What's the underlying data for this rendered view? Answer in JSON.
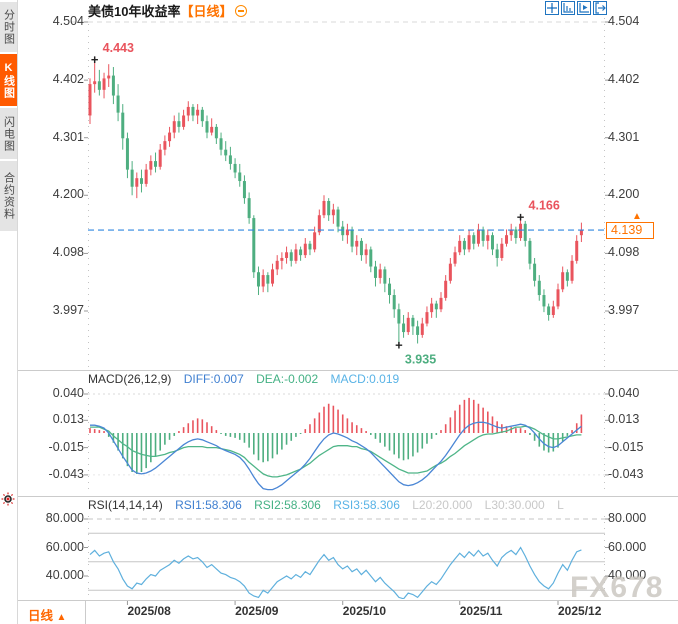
{
  "app": {
    "watermark": "FX678"
  },
  "colors": {
    "up": "#e9545d",
    "down": "#4eae80",
    "accent_orange": "#ff6600",
    "current_price_line": "#2e86e0",
    "diff_line": "#4a86d5",
    "dea_line": "#4fb588",
    "rsi_line": "#5fb0dd",
    "toolbar_blue": "#1f74c0",
    "axis_text": "#3d3d3d",
    "annotation_high": "#e9545d",
    "annotation_low": "#4eae80"
  },
  "sidebar": {
    "tabs": [
      {
        "label": "分时图",
        "active": false
      },
      {
        "label": "K线图",
        "active": true
      },
      {
        "label": "闪电图",
        "active": false
      },
      {
        "label": "合约资料",
        "active": false
      }
    ],
    "indicator_icon": "sun-icon"
  },
  "header": {
    "title": "美债10年收益率",
    "period_tag": "【日线】",
    "collapse_icon": "minus-circle-icon",
    "toolbar_icons": [
      "crosshair-icon",
      "axis-scale-icon",
      "axis-play-icon",
      "exit-chart-icon"
    ]
  },
  "main_chart": {
    "current_price": "4.139"
  },
  "macd": {
    "title": "MACD(26,12,9)",
    "diff_label": "DIFF:0.007",
    "dea_label": "DEA:-0.002",
    "macd_label": "MACD:0.019"
  },
  "rsi": {
    "title": "RSI(14,14,14)",
    "rsi1_label": "RSI1:58.306",
    "rsi2_label": "RSI2:58.306",
    "rsi3_label": "RSI3:58.306",
    "l20_label": "L20:20.000",
    "l30_label": "L30:30.000",
    "l_label": "L"
  },
  "footer": {
    "period_label": "日线",
    "arrow": "▲"
  },
  "chart_data": [
    {
      "type": "candlestick",
      "title": "美债10年收益率 日线",
      "y_tick_labels": [
        "4.504",
        "4.402",
        "4.301",
        "4.200",
        "4.098",
        "3.997"
      ],
      "y_tick_values": [
        4.504,
        4.402,
        4.301,
        4.2,
        4.098,
        3.997
      ],
      "ylim": [
        3.9,
        4.52
      ],
      "current_price": 4.139,
      "x_axis": {
        "labels": [
          "2025/08",
          "2025/09",
          "2025/10",
          "2025/11",
          "2025/12"
        ],
        "tick_indices": [
          8,
          31,
          54,
          79,
          100
        ]
      },
      "annotations": [
        {
          "label": "4.443",
          "index": 1,
          "price": 4.443,
          "placement": "above",
          "direction": "high"
        },
        {
          "label": "4.166",
          "index": 92,
          "price": 4.166,
          "placement": "above",
          "direction": "high"
        },
        {
          "label": "3.935",
          "index": 66,
          "price": 3.935,
          "placement": "below",
          "direction": "low"
        }
      ],
      "ohlc": [
        [
          4.34,
          4.405,
          4.325,
          4.395
        ],
        [
          4.395,
          4.443,
          4.38,
          4.4
        ],
        [
          4.4,
          4.42,
          4.375,
          4.385
        ],
        [
          4.385,
          4.415,
          4.37,
          4.405
        ],
        [
          4.405,
          4.43,
          4.39,
          4.41
        ],
        [
          4.41,
          4.425,
          4.36,
          4.375
        ],
        [
          4.375,
          4.395,
          4.33,
          4.345
        ],
        [
          4.345,
          4.36,
          4.28,
          4.3
        ],
        [
          4.3,
          4.31,
          4.23,
          4.245
        ],
        [
          4.245,
          4.26,
          4.2,
          4.215
        ],
        [
          4.215,
          4.24,
          4.195,
          4.23
        ],
        [
          4.23,
          4.245,
          4.205,
          4.22
        ],
        [
          4.22,
          4.255,
          4.215,
          4.245
        ],
        [
          4.245,
          4.27,
          4.235,
          4.26
        ],
        [
          4.26,
          4.275,
          4.24,
          4.25
        ],
        [
          4.25,
          4.29,
          4.245,
          4.28
        ],
        [
          4.28,
          4.305,
          4.27,
          4.295
        ],
        [
          4.295,
          4.32,
          4.285,
          4.31
        ],
        [
          4.31,
          4.34,
          4.3,
          4.33
        ],
        [
          4.33,
          4.345,
          4.31,
          4.32
        ],
        [
          4.32,
          4.35,
          4.315,
          4.34
        ],
        [
          4.34,
          4.365,
          4.33,
          4.355
        ],
        [
          4.355,
          4.36,
          4.33,
          4.34
        ],
        [
          4.34,
          4.36,
          4.325,
          4.35
        ],
        [
          4.35,
          4.355,
          4.32,
          4.33
        ],
        [
          4.33,
          4.34,
          4.3,
          4.31
        ],
        [
          4.31,
          4.335,
          4.305,
          4.32
        ],
        [
          4.32,
          4.325,
          4.29,
          4.3
        ],
        [
          4.3,
          4.31,
          4.27,
          4.28
        ],
        [
          4.28,
          4.295,
          4.26,
          4.27
        ],
        [
          4.27,
          4.285,
          4.245,
          4.255
        ],
        [
          4.255,
          4.265,
          4.23,
          4.24
        ],
        [
          4.24,
          4.255,
          4.215,
          4.225
        ],
        [
          4.225,
          4.235,
          4.185,
          4.195
        ],
        [
          4.195,
          4.205,
          4.15,
          4.16
        ],
        [
          4.16,
          4.165,
          4.055,
          4.065
        ],
        [
          4.065,
          4.075,
          4.025,
          4.04
        ],
        [
          4.04,
          4.07,
          4.03,
          4.06
        ],
        [
          4.06,
          4.065,
          4.03,
          4.045
        ],
        [
          4.045,
          4.08,
          4.04,
          4.07
        ],
        [
          4.07,
          4.095,
          4.06,
          4.085
        ],
        [
          4.085,
          4.1,
          4.07,
          4.09
        ],
        [
          4.09,
          4.11,
          4.08,
          4.1
        ],
        [
          4.1,
          4.105,
          4.075,
          4.085
        ],
        [
          4.085,
          4.115,
          4.08,
          4.105
        ],
        [
          4.105,
          4.11,
          4.085,
          4.095
        ],
        [
          4.095,
          4.125,
          4.09,
          4.115
        ],
        [
          4.115,
          4.12,
          4.095,
          4.105
        ],
        [
          4.105,
          4.145,
          4.1,
          4.135
        ],
        [
          4.135,
          4.175,
          4.13,
          4.165
        ],
        [
          4.165,
          4.2,
          4.16,
          4.19
        ],
        [
          4.19,
          4.195,
          4.155,
          4.165
        ],
        [
          4.165,
          4.185,
          4.15,
          4.175
        ],
        [
          4.175,
          4.18,
          4.135,
          4.145
        ],
        [
          4.145,
          4.155,
          4.12,
          4.13
        ],
        [
          4.13,
          4.15,
          4.115,
          4.14
        ],
        [
          4.14,
          4.145,
          4.1,
          4.11
        ],
        [
          4.11,
          4.13,
          4.095,
          4.12
        ],
        [
          4.12,
          4.125,
          4.085,
          4.095
        ],
        [
          4.095,
          4.115,
          4.08,
          4.105
        ],
        [
          4.105,
          4.11,
          4.065,
          4.075
        ],
        [
          4.075,
          4.085,
          4.04,
          4.055
        ],
        [
          4.055,
          4.08,
          4.045,
          4.07
        ],
        [
          4.07,
          4.075,
          4.03,
          4.045
        ],
        [
          4.045,
          4.055,
          4.01,
          4.025
        ],
        [
          4.025,
          4.035,
          3.985,
          4.0
        ],
        [
          4.0,
          4.01,
          3.935,
          3.975
        ],
        [
          3.975,
          3.99,
          3.95,
          3.96
        ],
        [
          3.96,
          3.995,
          3.955,
          3.985
        ],
        [
          3.985,
          3.99,
          3.955,
          3.97
        ],
        [
          3.97,
          3.98,
          3.94,
          3.955
        ],
        [
          3.955,
          3.985,
          3.95,
          3.975
        ],
        [
          3.975,
          4.005,
          3.97,
          3.995
        ],
        [
          3.995,
          4.02,
          3.985,
          4.01
        ],
        [
          4.01,
          4.015,
          3.985,
          4.0
        ],
        [
          4.0,
          4.03,
          3.995,
          4.02
        ],
        [
          4.02,
          4.06,
          4.015,
          4.05
        ],
        [
          4.05,
          4.09,
          4.045,
          4.08
        ],
        [
          4.08,
          4.11,
          4.075,
          4.1
        ],
        [
          4.1,
          4.13,
          4.095,
          4.12
        ],
        [
          4.12,
          4.125,
          4.095,
          4.105
        ],
        [
          4.105,
          4.14,
          4.1,
          4.13
        ],
        [
          4.13,
          4.135,
          4.105,
          4.115
        ],
        [
          4.115,
          4.15,
          4.11,
          4.14
        ],
        [
          4.14,
          4.145,
          4.11,
          4.12
        ],
        [
          4.12,
          4.14,
          4.105,
          4.13
        ],
        [
          4.13,
          4.135,
          4.095,
          4.105
        ],
        [
          4.105,
          4.115,
          4.075,
          4.09
        ],
        [
          4.09,
          4.125,
          4.085,
          4.115
        ],
        [
          4.115,
          4.14,
          4.11,
          4.13
        ],
        [
          4.13,
          4.15,
          4.12,
          4.14
        ],
        [
          4.14,
          4.145,
          4.115,
          4.125
        ],
        [
          4.125,
          4.166,
          4.12,
          4.15
        ],
        [
          4.15,
          4.155,
          4.11,
          4.12
        ],
        [
          4.12,
          4.125,
          4.07,
          4.08
        ],
        [
          4.08,
          4.09,
          4.04,
          4.05
        ],
        [
          4.05,
          4.06,
          4.015,
          4.025
        ],
        [
          4.025,
          4.035,
          3.995,
          4.005
        ],
        [
          4.005,
          4.01,
          3.98,
          3.99
        ],
        [
          3.99,
          4.015,
          3.985,
          4.005
        ],
        [
          4.005,
          4.045,
          4.0,
          4.035
        ],
        [
          4.035,
          4.075,
          4.03,
          4.065
        ],
        [
          4.065,
          4.07,
          4.04,
          4.05
        ],
        [
          4.05,
          4.095,
          4.045,
          4.085
        ],
        [
          4.085,
          4.13,
          4.08,
          4.12
        ],
        [
          4.13,
          4.152,
          4.118,
          4.139
        ]
      ]
    },
    {
      "type": "bar+line",
      "name": "MACD(26,12,9)",
      "readout": {
        "diff": 0.007,
        "dea": -0.002,
        "macd": 0.019
      },
      "y_tick_labels": [
        "0.040",
        "0.013",
        "-0.015",
        "-0.043"
      ],
      "y_tick_values": [
        0.04,
        0.013,
        -0.015,
        -0.043
      ],
      "hist": [
        0.005,
        0.004,
        0.003,
        0.002,
        -0.004,
        -0.01,
        -0.018,
        -0.026,
        -0.034,
        -0.04,
        -0.042,
        -0.04,
        -0.036,
        -0.03,
        -0.024,
        -0.018,
        -0.012,
        -0.007,
        -0.003,
        0.002,
        0.006,
        0.01,
        0.013,
        0.015,
        0.014,
        0.011,
        0.007,
        0.003,
        -0.001,
        -0.003,
        -0.004,
        -0.005,
        -0.007,
        -0.01,
        -0.015,
        -0.022,
        -0.028,
        -0.03,
        -0.029,
        -0.026,
        -0.022,
        -0.017,
        -0.012,
        -0.008,
        -0.004,
        -0.001,
        0.004,
        0.009,
        0.015,
        0.021,
        0.027,
        0.03,
        0.028,
        0.024,
        0.019,
        0.015,
        0.011,
        0.008,
        0.005,
        0.002,
        -0.002,
        -0.006,
        -0.01,
        -0.014,
        -0.018,
        -0.022,
        -0.026,
        -0.028,
        -0.027,
        -0.024,
        -0.02,
        -0.016,
        -0.011,
        -0.006,
        -0.002,
        0.003,
        0.009,
        0.016,
        0.023,
        0.029,
        0.034,
        0.036,
        0.034,
        0.03,
        0.026,
        0.022,
        0.017,
        0.012,
        0.009,
        0.007,
        0.006,
        0.005,
        0.005,
        0.003,
        -0.002,
        -0.008,
        -0.014,
        -0.018,
        -0.02,
        -0.019,
        -0.015,
        -0.009,
        -0.003,
        0.003,
        0.01,
        0.019
      ],
      "diff": [
        0.008,
        0.008,
        0.007,
        0.005,
        0.0,
        -0.008,
        -0.016,
        -0.024,
        -0.031,
        -0.038,
        -0.041,
        -0.042,
        -0.041,
        -0.039,
        -0.036,
        -0.032,
        -0.028,
        -0.024,
        -0.02,
        -0.016,
        -0.012,
        -0.009,
        -0.007,
        -0.006,
        -0.007,
        -0.009,
        -0.011,
        -0.013,
        -0.016,
        -0.018,
        -0.02,
        -0.022,
        -0.025,
        -0.03,
        -0.037,
        -0.045,
        -0.052,
        -0.057,
        -0.058,
        -0.058,
        -0.056,
        -0.053,
        -0.049,
        -0.045,
        -0.041,
        -0.037,
        -0.032,
        -0.026,
        -0.019,
        -0.012,
        -0.006,
        -0.002,
        0.0,
        -0.001,
        -0.003,
        -0.005,
        -0.008,
        -0.01,
        -0.013,
        -0.016,
        -0.02,
        -0.025,
        -0.03,
        -0.035,
        -0.04,
        -0.045,
        -0.05,
        -0.053,
        -0.054,
        -0.053,
        -0.051,
        -0.048,
        -0.044,
        -0.039,
        -0.034,
        -0.029,
        -0.023,
        -0.016,
        -0.009,
        -0.002,
        0.004,
        0.008,
        0.01,
        0.011,
        0.011,
        0.01,
        0.008,
        0.006,
        0.005,
        0.006,
        0.007,
        0.008,
        0.009,
        0.008,
        0.005,
        0.0,
        -0.006,
        -0.011,
        -0.014,
        -0.015,
        -0.013,
        -0.009,
        -0.005,
        -0.001,
        0.003,
        0.007
      ],
      "dea": [
        0.006,
        0.006,
        0.006,
        0.004,
        0.002,
        -0.003,
        -0.007,
        -0.011,
        -0.014,
        -0.018,
        -0.02,
        -0.022,
        -0.023,
        -0.024,
        -0.024,
        -0.023,
        -0.022,
        -0.02,
        -0.019,
        -0.017,
        -0.015,
        -0.014,
        -0.014,
        -0.014,
        -0.014,
        -0.015,
        -0.015,
        -0.015,
        -0.016,
        -0.017,
        -0.018,
        -0.02,
        -0.022,
        -0.025,
        -0.03,
        -0.034,
        -0.038,
        -0.042,
        -0.044,
        -0.045,
        -0.045,
        -0.044,
        -0.043,
        -0.041,
        -0.039,
        -0.037,
        -0.034,
        -0.031,
        -0.027,
        -0.023,
        -0.02,
        -0.017,
        -0.014,
        -0.013,
        -0.013,
        -0.013,
        -0.014,
        -0.014,
        -0.016,
        -0.017,
        -0.019,
        -0.022,
        -0.025,
        -0.028,
        -0.031,
        -0.034,
        -0.037,
        -0.039,
        -0.041,
        -0.041,
        -0.041,
        -0.04,
        -0.039,
        -0.036,
        -0.033,
        -0.031,
        -0.028,
        -0.024,
        -0.021,
        -0.017,
        -0.013,
        -0.01,
        -0.007,
        -0.004,
        -0.002,
        -0.001,
        -0.001,
        0.0,
        0.001,
        0.002,
        0.004,
        0.006,
        0.006,
        0.007,
        0.006,
        0.004,
        0.001,
        -0.002,
        -0.004,
        -0.006,
        -0.006,
        -0.005,
        -0.004,
        -0.003,
        -0.002,
        -0.002
      ]
    },
    {
      "type": "line",
      "name": "RSI(14,14,14)",
      "readout": {
        "rsi1": 58.306,
        "rsi2": 58.306,
        "rsi3": 58.306,
        "l20": 20.0,
        "l30": 30.0
      },
      "y_tick_labels": [
        "80.000",
        "60.000",
        "40.000"
      ],
      "y_tick_values": [
        80,
        60,
        40
      ],
      "guide_lines": [
        {
          "value": 80,
          "style": "dashed"
        },
        {
          "value": 70,
          "style": "solid"
        },
        {
          "value": 50,
          "style": "solid"
        },
        {
          "value": 30,
          "style": "solid"
        }
      ],
      "values": [
        55,
        58,
        54,
        56,
        57,
        50,
        45,
        38,
        33,
        31,
        35,
        34,
        38,
        41,
        40,
        44,
        46,
        48,
        51,
        49,
        52,
        54,
        52,
        53,
        50,
        46,
        48,
        45,
        42,
        41,
        39,
        38,
        36,
        33,
        28,
        26,
        25,
        30,
        28,
        32,
        36,
        38,
        40,
        38,
        41,
        39,
        43,
        41,
        46,
        51,
        55,
        51,
        53,
        48,
        45,
        47,
        43,
        45,
        41,
        44,
        40,
        36,
        39,
        35,
        32,
        29,
        25,
        24,
        28,
        27,
        25,
        29,
        33,
        36,
        34,
        38,
        43,
        48,
        52,
        56,
        53,
        57,
        54,
        58,
        54,
        56,
        51,
        47,
        53,
        56,
        58,
        55,
        60,
        54,
        47,
        41,
        36,
        33,
        31,
        35,
        42,
        48,
        44,
        51,
        57,
        58.306
      ]
    }
  ]
}
